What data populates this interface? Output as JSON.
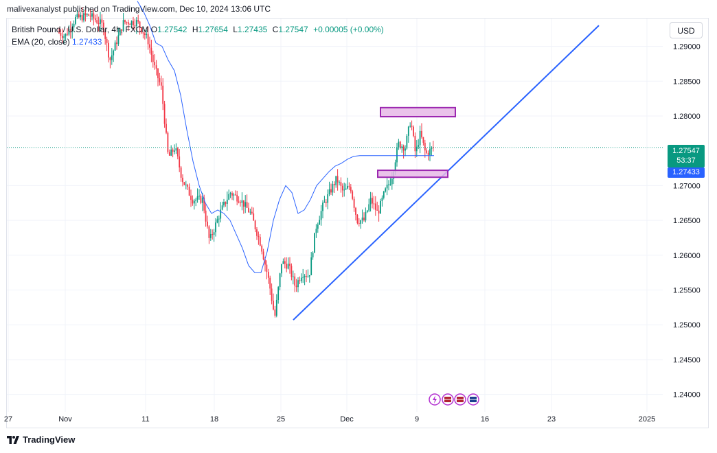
{
  "header": {
    "publish_line": "malivexanalyst published on TradingView.com, Dec 10, 2024 13:06 UTC"
  },
  "legend": {
    "symbol": "British Pound / U.S. Dollar, 4h, FXCM",
    "o_label": "O",
    "o_value": "1.27542",
    "h_label": "H",
    "h_value": "1.27654",
    "l_label": "L",
    "l_value": "1.27435",
    "c_label": "C",
    "c_value": "1.27547",
    "change": "+0.00005 (+0.00%)",
    "ema_label": "EMA (20, close)",
    "ema_value": "1.27433"
  },
  "currency_button": "USD",
  "price_tags": {
    "last_price": "1.27547",
    "countdown": "53:37",
    "ema_price": "1.27433"
  },
  "colors": {
    "up": "#089981",
    "down": "#f23645",
    "ema": "#2962ff",
    "trendline": "#2962ff",
    "zone_fill": "#e6b8e6",
    "zone_border": "#9c27b0"
  },
  "footer": {
    "brand": "TradingView"
  },
  "chart_data": {
    "type": "line",
    "title": "",
    "y_axis": {
      "ticks": [
        "1.29000",
        "1.28500",
        "1.28000",
        "1.27000",
        "1.26500",
        "1.26000",
        "1.25500",
        "1.25000",
        "1.24500",
        "1.24000"
      ],
      "range": [
        1.2375,
        1.294
      ]
    },
    "x_axis": {
      "ticks": [
        "27",
        "Nov",
        "11",
        "18",
        "25",
        "Dec",
        "9",
        "16",
        "23",
        "2025"
      ]
    },
    "series": [
      {
        "kind": "ema",
        "x": [
          0,
          5,
          10,
          15,
          20,
          25,
          30,
          35,
          40,
          45,
          50,
          55,
          60,
          65,
          70,
          75,
          80,
          85,
          90,
          95,
          100,
          105,
          110,
          115,
          120,
          125,
          130,
          135,
          140,
          145,
          150,
          155,
          160,
          165,
          170,
          175,
          180,
          185,
          190,
          195,
          200,
          205,
          210,
          215,
          220,
          225,
          230,
          235,
          240
        ],
        "values": [
          1.2965,
          1.295,
          1.293,
          1.2905,
          1.29,
          1.288,
          1.2865,
          1.283,
          1.278,
          1.2735,
          1.27,
          1.2675,
          1.266,
          1.2665,
          1.266,
          1.265,
          1.263,
          1.261,
          1.2585,
          1.2575,
          1.2575,
          1.2605,
          1.265,
          1.268,
          1.27,
          1.269,
          1.266,
          1.2665,
          1.268,
          1.27,
          1.271,
          1.272,
          1.2728,
          1.2732,
          1.2738,
          1.2742,
          1.2743,
          1.2743,
          1.2743,
          1.2743,
          1.2743,
          1.2743,
          1.2743,
          1.2743,
          1.2743,
          1.2743,
          1.2743,
          1.2743,
          1.2743
        ]
      }
    ],
    "trendline": {
      "from": {
        "date": "Nov 26",
        "price": 1.2507
      },
      "to": {
        "date": "Dec 27",
        "price": 1.293
      }
    },
    "zones": [
      {
        "name": "resistance-zone",
        "high": 1.2812,
        "low": 1.2799
      },
      {
        "name": "support-zone",
        "high": 1.2722,
        "low": 1.2712
      }
    ],
    "last_price": 1.27547,
    "grid": true
  }
}
